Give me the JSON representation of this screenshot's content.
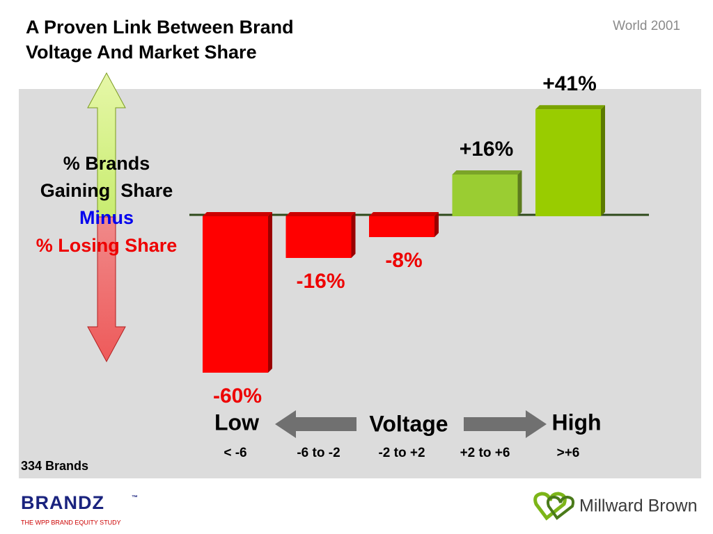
{
  "chart_data": {
    "type": "bar",
    "title": [
      "A Proven Link Between Brand",
      "Voltage And Market Share"
    ],
    "subtitle": "World 2001",
    "y_axis_label": [
      "% Brands",
      "Gaining  Share",
      "Minus",
      "% Losing Share"
    ],
    "x_axis_label": {
      "low": "Low",
      "title": "Voltage",
      "high": "High"
    },
    "categories": [
      "< -6",
      "-6 to -2",
      "-2 to +2",
      "+2 to +6",
      ">+6"
    ],
    "values": [
      -60,
      -16,
      -8,
      16,
      41
    ],
    "value_labels": [
      "-60%",
      "-16%",
      "-8%",
      "+16%",
      "+41%"
    ],
    "colors": [
      "#ff0000",
      "#ff0000",
      "#ff0000",
      "#9acd32",
      "#99cc00"
    ],
    "note": "334 Brands",
    "footer": {
      "brand": "BRANDZ",
      "trademark": "™",
      "tagline": "THE WPP BRAND EQUITY STUDY",
      "company": "Millward Brown"
    }
  }
}
